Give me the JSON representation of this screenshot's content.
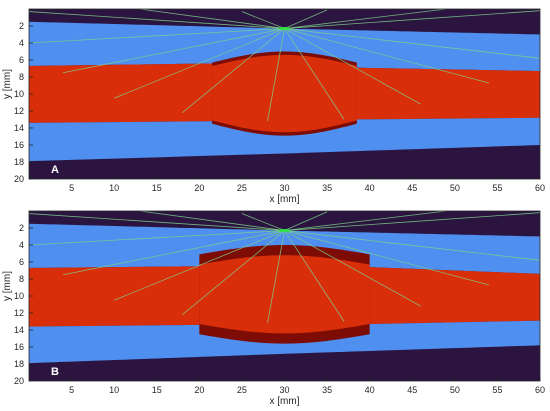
{
  "colors": {
    "background": "#2b1540",
    "tissue_outer": "#4f8ff0",
    "tissue_core": "#d92e0a",
    "inclusion_rim": "#7d0c05",
    "ray": "#7fd08a",
    "source": "#33e04a",
    "axis": "#262626"
  },
  "chart_data": [
    {
      "type": "heatmap",
      "panel_label": "A",
      "xlabel": "x [mm]",
      "ylabel": "y [mm]",
      "xlim": [
        0,
        60
      ],
      "ylim": [
        20,
        0
      ],
      "xticks": [
        "5",
        "10",
        "15",
        "20",
        "25",
        "30",
        "35",
        "40",
        "45",
        "50",
        "55",
        "60"
      ],
      "yticks": [
        "2",
        "4",
        "6",
        "8",
        "10",
        "12",
        "14",
        "16",
        "18",
        "20"
      ],
      "source": {
        "x": 30,
        "y": 2.3
      },
      "layers": [
        {
          "name": "upper blue layer",
          "color_key": "tissue_outer",
          "top": [
            [
              0,
              1.5
            ],
            [
              30,
              2.3
            ],
            [
              60,
              3.0
            ]
          ],
          "bottom": [
            [
              0,
              6.7
            ],
            [
              22,
              6.4
            ],
            [
              38,
              6.9
            ],
            [
              60,
              7.3
            ]
          ]
        },
        {
          "name": "red core",
          "color_key": "tissue_core",
          "top": [
            [
              0,
              6.7
            ],
            [
              22,
              6.4
            ],
            [
              38,
              6.9
            ],
            [
              60,
              7.3
            ]
          ],
          "bottom": [
            [
              0,
              13.4
            ],
            [
              22,
              13.2
            ],
            [
              38,
              13.0
            ],
            [
              60,
              12.8
            ]
          ]
        },
        {
          "name": "lower blue layer",
          "color_key": "tissue_outer",
          "top": [
            [
              0,
              13.4
            ],
            [
              22,
              13.2
            ],
            [
              38,
              13.0
            ],
            [
              60,
              12.8
            ]
          ],
          "bottom": [
            [
              0,
              17.9
            ],
            [
              30,
              17.0
            ],
            [
              60,
              16.0
            ]
          ]
        }
      ],
      "lens": {
        "x_start": 21.5,
        "x_end": 38.5,
        "top_edge_y": 6.3,
        "top_peak_y": 5.0,
        "bottom_edge_y": 13.5,
        "bottom_peak_y": 14.9,
        "rim_thickness": 0.4
      },
      "ray_endpoints": [
        [
          0,
          0.3
        ],
        [
          13,
          0.0
        ],
        [
          25,
          0.3
        ],
        [
          35,
          0.1
        ],
        [
          49,
          0.0
        ],
        [
          60,
          0.2
        ],
        [
          0,
          4.0
        ],
        [
          4,
          7.5
        ],
        [
          10,
          10.5
        ],
        [
          18,
          12.2
        ],
        [
          28,
          13.2
        ],
        [
          37,
          13.0
        ],
        [
          46,
          11.2
        ],
        [
          54,
          8.7
        ],
        [
          60,
          5.8
        ]
      ]
    },
    {
      "type": "heatmap",
      "panel_label": "B",
      "xlabel": "x [mm]",
      "ylabel": "y [mm]",
      "xlim": [
        0,
        60
      ],
      "ylim": [
        20,
        0
      ],
      "xticks": [
        "5",
        "10",
        "15",
        "20",
        "25",
        "30",
        "35",
        "40",
        "45",
        "50",
        "55",
        "60"
      ],
      "yticks": [
        "2",
        "4",
        "6",
        "8",
        "10",
        "12",
        "14",
        "16",
        "18",
        "20"
      ],
      "source": {
        "x": 30,
        "y": 2.3
      },
      "layers": [
        {
          "name": "upper blue layer",
          "color_key": "tissue_outer",
          "top": [
            [
              0,
              1.5
            ],
            [
              30,
              2.3
            ],
            [
              60,
              3.0
            ]
          ],
          "bottom": [
            [
              0,
              6.7
            ],
            [
              20,
              6.5
            ],
            [
              40,
              6.6
            ],
            [
              60,
              7.4
            ]
          ]
        },
        {
          "name": "red core",
          "color_key": "tissue_core",
          "top": [
            [
              0,
              6.7
            ],
            [
              20,
              6.5
            ],
            [
              40,
              6.6
            ],
            [
              60,
              7.4
            ]
          ],
          "bottom": [
            [
              0,
              13.6
            ],
            [
              20,
              13.4
            ],
            [
              40,
              13.3
            ],
            [
              60,
              12.9
            ]
          ]
        },
        {
          "name": "lower blue layer",
          "color_key": "tissue_outer",
          "top": [
            [
              0,
              13.6
            ],
            [
              20,
              13.4
            ],
            [
              40,
              13.3
            ],
            [
              60,
              12.9
            ]
          ],
          "bottom": [
            [
              0,
              17.9
            ],
            [
              30,
              16.8
            ],
            [
              60,
              15.8
            ]
          ]
        }
      ],
      "lens": {
        "x_start": 20.0,
        "x_end": 40.0,
        "top_edge_y": 5.1,
        "top_peak_y": 4.0,
        "bottom_edge_y": 14.5,
        "bottom_peak_y": 15.6,
        "rim_thickness": 1.2
      },
      "ray_endpoints": [
        [
          0,
          0.3
        ],
        [
          13,
          0.0
        ],
        [
          25,
          0.3
        ],
        [
          35,
          0.1
        ],
        [
          49,
          0.0
        ],
        [
          60,
          0.2
        ],
        [
          0,
          4.0
        ],
        [
          4,
          7.5
        ],
        [
          10,
          10.5
        ],
        [
          18,
          12.2
        ],
        [
          28,
          13.2
        ],
        [
          37,
          13.0
        ],
        [
          46,
          11.2
        ],
        [
          54,
          8.7
        ],
        [
          60,
          5.8
        ]
      ]
    }
  ]
}
